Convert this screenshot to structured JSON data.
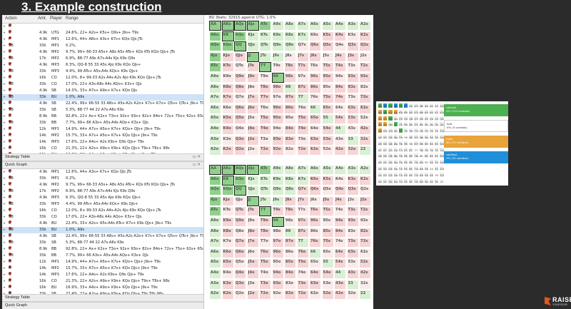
{
  "slide": {
    "title": "3. Example construction"
  },
  "logo": {
    "name": "RAISE",
    "tagline": "YOUR EDGE"
  },
  "table": {
    "headers": [
      "Action",
      "Amt.",
      "Player",
      "Range"
    ],
    "strategy_label": "Strategy Table",
    "quick_label": "Quick Graph",
    "top_rows": [
      {
        "a": "R",
        "amt": "",
        "p": "",
        "r": ""
      },
      {
        "a": "C",
        "amt": "4.9k",
        "p": "UTG",
        "r": "24.6%, 22+ A2s+ K5s+ Q9s+ J9s+ T9s"
      },
      {
        "a": "F",
        "amt": "4.9k",
        "p": "MP1",
        "r": "12.6%, 44+ A8s+ A3s+ K7s+ KQo QJs JTs"
      },
      {
        "a": "3B",
        "amt": "33k",
        "p": "MP1",
        "r": "0.2%,"
      },
      {
        "a": "C",
        "amt": "4.9k",
        "p": "MP2",
        "r": "9.7%, 99+ 66-33 A5s+ A8s A5s ATo+ KQs KTs KQo QJs+ JTs"
      },
      {
        "a": "3B",
        "amt": "17k",
        "p": "MP2",
        "r": "6.9%, 88-77 A9s A7s-A4s KJs K9s Q9s"
      },
      {
        "a": "C",
        "amt": "4.9k",
        "p": "MP3",
        "r": "6.3%, QQ-8 55 33 A5s AJo K9s KQo QJs+"
      },
      {
        "a": "3B",
        "amt": "33k",
        "p": "MP3",
        "r": "4.4%, 99 ATs+ A5s-A4s KQs+ K9s QJs+"
      },
      {
        "a": "C",
        "amt": "16k",
        "p": "CO",
        "r": "12.0%, 8+ 99-33 A2s A4s-A2s AJo K9s KQo QJs+ JTs"
      },
      {
        "a": "3B",
        "amt": "33k",
        "p": "CO",
        "r": "17.0%, 22+ A3s-A8s A4s AQo+ K3s+ QJs"
      },
      {
        "a": "C",
        "amt": "4.9k",
        "p": "SB",
        "r": "14.3%, 33+ A7s+ A9o+ K7s+ KQo QJs"
      },
      {
        "a": "3B",
        "amt": "33k",
        "p": "BU",
        "r": "1.0%, A9s"
      },
      {
        "a": "C",
        "amt": "4.9k",
        "p": "SB",
        "r": "22.4%, 99+ 66-55 33 A8s+ A5s-A2s A2o+ K7s+ K7o+ Q5s+ QTo+ J9s+ T9s"
      },
      {
        "a": "3B",
        "amt": "33k",
        "p": "SB",
        "r": "5.3%, 88-77 44 22 A7s-A6s K9s"
      },
      {
        "a": "C",
        "amt": "8.9k",
        "p": "BB",
        "r": "92.8%, 22+ Ax+ K2s+ T3o+ 92s+ 93o+ 82s+ 84o+ 72s+ 75o+ 62s+ 65o+ 5x 42s+ 43o"
      },
      {
        "a": "3B",
        "amt": "33k",
        "p": "BB",
        "r": "7.7%, 99+ 66 A3s+ A5s-A4s AQo+ K3s+ QJs"
      },
      {
        "a": "R",
        "amt": "12k",
        "p": "MP1",
        "r": "14.9%, 44+ A7s+ A5o+ K7s+ KQo+ QJs+ J9s+ T9s"
      },
      {
        "a": "R",
        "amt": "14k",
        "p": "MP2",
        "r": "15.7%, 33+ A7s+ A5o+ K7s+ KQo QJs+ J9s+ T9s"
      },
      {
        "a": "C",
        "amt": "14k",
        "p": "MP3",
        "r": "17.6%, 22+ A4s+ A2s K9s+ Q9s QJs+ T9s"
      },
      {
        "a": "R",
        "amt": "16k",
        "p": "CO",
        "r": "21.3%, 22+ A2s+ A9o+ K9s+ KQo QJs+ T9s+ T8s+ 98s"
      },
      {
        "a": "R",
        "amt": "16k",
        "p": "BU",
        "r": "16.9%, 33+ A4s+ A9o+ K9s+ KQo QJs+ J9s+ T9s"
      },
      {
        "a": "R",
        "amt": "33k",
        "p": "SB",
        "r": "22.4%, 22+ A2s+ A9o+ K9s+ KQo QJs+ T9s T8s 98s"
      }
    ],
    "bottom_rows": [
      {
        "a": "C",
        "amt": "4.9k",
        "p": "MP1",
        "r": "12.6%, 44+ A3s+ K7s+ KQo QJs JTs"
      },
      {
        "a": "3B",
        "amt": "33k",
        "p": "MP1",
        "r": "0.2%,"
      },
      {
        "a": "C",
        "amt": "4.9k",
        "p": "MP2",
        "r": "9.7%, 99+ 66-33 A5s+ A8s A5s ATo+ KQs KTs KQo QJs+ JTs"
      },
      {
        "a": "3B",
        "amt": "17k",
        "p": "MP2",
        "r": "6.9%, 88-77 A9s A7s-A4s KJs K9s Q9s"
      },
      {
        "a": "C",
        "amt": "4.9k",
        "p": "MP3",
        "r": "6.3%, QQ-8 55 33 A5s AJo K9s KQo QJs+"
      },
      {
        "a": "3B",
        "amt": "33k",
        "p": "MP3",
        "r": "4.4%, 99 ATs+ A5s-A4s KQs+ K9s QJs+"
      },
      {
        "a": "C",
        "amt": "16k",
        "p": "CO",
        "r": "12.0%, 8+ 99-33 A2s A4s-A2s AJo K9s KQo QJs+ JTs"
      },
      {
        "a": "3B",
        "amt": "33k",
        "p": "CO",
        "r": "17.0%, 22+ A3s-A8s A4s AQo+ K3s+ QJs"
      },
      {
        "a": "C",
        "amt": "4.9k",
        "p": "BU",
        "r": "22.4%, 33+ A2s+ A5s-A4s ATs+ K7s+ K9s QJs+ J9s+ T9s"
      },
      {
        "a": "3B",
        "amt": "33k",
        "p": "BU",
        "r": "1.0%, A9s"
      },
      {
        "a": "C",
        "amt": "4.9k",
        "p": "SB",
        "r": "22.4%, 99+ 66-55 33 A8s+ A5s-A2s A2o+ K7s+ K7o+ Q5s+ QTo+ J9s+ T9s"
      },
      {
        "a": "3B",
        "amt": "33k",
        "p": "SB",
        "r": "5.3%, 88-77 44 22 A7s-A6s K9s"
      },
      {
        "a": "C",
        "amt": "8.9k",
        "p": "BB",
        "r": "92.8%, 22+ Ax+ K2s+ T3o+ 92s+ 93o+ 82s+ 84o+ 72s+ 75o+ 62s+ 65o+ 5x 42s+ 43o"
      },
      {
        "a": "3B",
        "amt": "33k",
        "p": "BB",
        "r": "7.7%, 99+ 66 A3s+ A5s-A4s AQo+ K3s+ QJs"
      },
      {
        "a": "R",
        "amt": "12k",
        "p": "MP1",
        "r": "14.9%, 44+ A7s+ A5o+ K7s+ KQo+ QJs+ J9s+ T9s"
      },
      {
        "a": "R",
        "amt": "14k",
        "p": "MP2",
        "r": "15.7%, 33+ A7s+ A5o+ K7s+ KQo QJs+ J9s+ T9s"
      },
      {
        "a": "C",
        "amt": "14k",
        "p": "MP3",
        "r": "17.6%, 22+ A4s+ A2s K9s+ Q9s QJs+ T9s"
      },
      {
        "a": "R",
        "amt": "16k",
        "p": "CO",
        "r": "21.3%, 22+ A2s+ A9o+ K9s+ KQo QJs+ T9s+ T8s+ 98s"
      },
      {
        "a": "R",
        "amt": "16k",
        "p": "BU",
        "r": "16.9%, 33+ A4s+ A9o+ K9s+ KQo QJs+ J9s+ T9s"
      },
      {
        "a": "R",
        "amt": "33k",
        "p": "SB",
        "r": "22.4%, 22+ A2s+ A9o+ K9s+ KQo QJs+ T9s T8s 98s"
      }
    ]
  },
  "grid": {
    "title": "BU 3bets: 32915 against UTG: 1.0%",
    "ranks": [
      "A",
      "K",
      "Q",
      "J",
      "T",
      "9",
      "8",
      "7",
      "6",
      "5",
      "4",
      "3",
      "2"
    ],
    "colors": {
      "green": "#8fd18a",
      "pale_green": "#d9f0d3",
      "pink": "#f7d5d5",
      "pale_pink": "#fbeaea",
      "white": "#ffffff"
    }
  },
  "mini_legend": [
    {
      "label": "call/call",
      "sub": "4% (724 combos)",
      "color": "#4caf50"
    },
    {
      "label": "fold",
      "sub": "0% (0 combos)",
      "color": "#ffffff"
    },
    {
      "label": "raise",
      "sub": "8% (73 combos)",
      "color": "#e8a33a"
    },
    {
      "label": "call/fold",
      "sub": "2% (32 combos)",
      "color": "#1f8fd9"
    }
  ]
}
